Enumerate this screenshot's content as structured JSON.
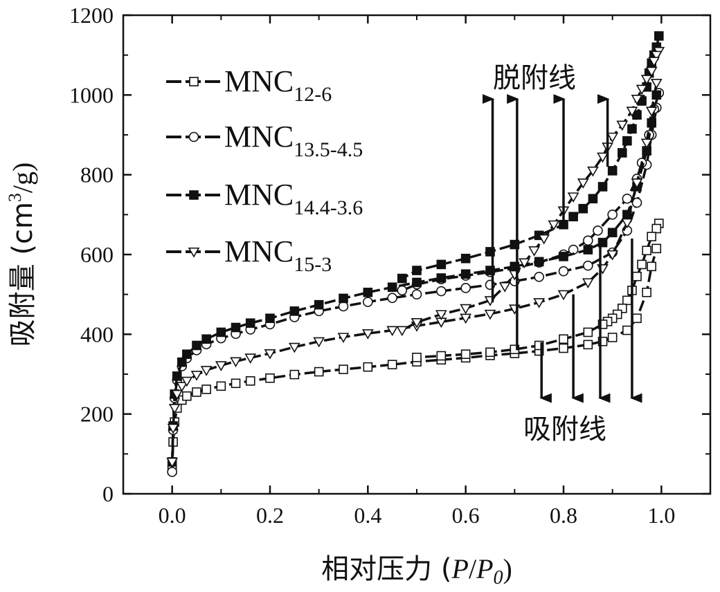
{
  "chart_data": {
    "type": "line",
    "xlabel": {
      "main": "相对压力 (",
      "p": "P",
      "slash": "/",
      "p0": "P",
      "p0sub": "0",
      "close": ")"
    },
    "ylabel": {
      "main": "吸附量 (cm",
      "sup": "3",
      "tail": "/g)"
    },
    "xlim": [
      -0.1,
      1.1
    ],
    "ylim": [
      0,
      1200
    ],
    "xticks": [
      0.0,
      0.2,
      0.4,
      0.6,
      0.8,
      1.0
    ],
    "xtick_labels": [
      "0.0",
      "0.2",
      "0.4",
      "0.6",
      "0.8",
      "1.0"
    ],
    "yticks": [
      0,
      200,
      400,
      600,
      800,
      1000,
      1200
    ],
    "ytick_labels": [
      "0",
      "200",
      "400",
      "600",
      "800",
      "1000",
      "1200"
    ],
    "grid": false,
    "legend_position": "top-left",
    "series": [
      {
        "name": "MNC",
        "subscript": "12-6",
        "marker": "open-square",
        "adsorption": {
          "x": [
            0.0,
            0.002,
            0.005,
            0.01,
            0.02,
            0.03,
            0.05,
            0.07,
            0.1,
            0.13,
            0.16,
            0.2,
            0.25,
            0.3,
            0.35,
            0.4,
            0.45,
            0.5,
            0.55,
            0.6,
            0.65,
            0.7,
            0.75,
            0.8,
            0.85,
            0.88,
            0.9,
            0.93,
            0.95,
            0.97,
            0.98,
            0.99
          ],
          "y": [
            60,
            130,
            180,
            215,
            235,
            245,
            255,
            262,
            270,
            277,
            283,
            290,
            299,
            306,
            312,
            318,
            324,
            331,
            336,
            341,
            347,
            352,
            358,
            365,
            374,
            382,
            392,
            410,
            440,
            505,
            570,
            615
          ]
        },
        "desorption": {
          "x": [
            0.995,
            0.99,
            0.98,
            0.97,
            0.96,
            0.95,
            0.94,
            0.93,
            0.92,
            0.91,
            0.9,
            0.89,
            0.88,
            0.85,
            0.8,
            0.75,
            0.7,
            0.65,
            0.6,
            0.55,
            0.5
          ],
          "y": [
            678,
            665,
            645,
            610,
            575,
            545,
            510,
            485,
            465,
            450,
            440,
            432,
            425,
            405,
            388,
            372,
            362,
            355,
            350,
            346,
            342
          ]
        }
      },
      {
        "name": "MNC",
        "subscript": "13.5-4.5",
        "marker": "open-circle",
        "adsorption": {
          "x": [
            0.0,
            0.002,
            0.005,
            0.01,
            0.02,
            0.03,
            0.05,
            0.07,
            0.1,
            0.13,
            0.16,
            0.2,
            0.25,
            0.3,
            0.35,
            0.4,
            0.45,
            0.5,
            0.55,
            0.6,
            0.65,
            0.7,
            0.75,
            0.8,
            0.85,
            0.9,
            0.93,
            0.95,
            0.97,
            0.98,
            0.99
          ],
          "y": [
            55,
            160,
            240,
            285,
            320,
            340,
            360,
            375,
            390,
            401,
            412,
            425,
            443,
            458,
            470,
            481,
            491,
            500,
            508,
            516,
            524,
            533,
            544,
            558,
            572,
            605,
            660,
            730,
            825,
            900,
            968
          ]
        },
        "desorption": {
          "x": [
            0.995,
            0.985,
            0.975,
            0.96,
            0.95,
            0.93,
            0.9,
            0.87,
            0.85,
            0.82,
            0.8,
            0.75,
            0.7,
            0.65,
            0.6,
            0.55,
            0.5,
            0.47
          ],
          "y": [
            1005,
            965,
            900,
            830,
            790,
            740,
            700,
            660,
            635,
            612,
            600,
            580,
            566,
            556,
            547,
            538,
            525,
            510
          ]
        }
      },
      {
        "name": "MNC",
        "subscript": "14.4-3.6",
        "marker": "filled-square",
        "adsorption": {
          "x": [
            0.0,
            0.002,
            0.005,
            0.01,
            0.02,
            0.03,
            0.05,
            0.07,
            0.1,
            0.13,
            0.16,
            0.2,
            0.25,
            0.3,
            0.35,
            0.4,
            0.45,
            0.5,
            0.55,
            0.6,
            0.65,
            0.7,
            0.75,
            0.8,
            0.85,
            0.88,
            0.9,
            0.93,
            0.95,
            0.97,
            0.98,
            0.99
          ],
          "y": [
            80,
            170,
            250,
            295,
            330,
            350,
            372,
            388,
            405,
            417,
            428,
            440,
            458,
            474,
            490,
            505,
            518,
            530,
            541,
            551,
            560,
            570,
            582,
            595,
            612,
            630,
            655,
            700,
            770,
            860,
            930,
            1000
          ]
        },
        "desorption": {
          "x": [
            0.995,
            0.99,
            0.985,
            0.98,
            0.975,
            0.97,
            0.96,
            0.95,
            0.94,
            0.93,
            0.92,
            0.9,
            0.88,
            0.86,
            0.84,
            0.82,
            0.8,
            0.75,
            0.7,
            0.65,
            0.6,
            0.55,
            0.5,
            0.47
          ],
          "y": [
            1148,
            1120,
            1100,
            1080,
            1055,
            1020,
            985,
            950,
            915,
            885,
            855,
            810,
            770,
            740,
            715,
            695,
            675,
            648,
            625,
            607,
            590,
            575,
            560,
            540
          ]
        }
      },
      {
        "name": "MNC",
        "subscript": "15-3",
        "marker": "open-triangle-down",
        "adsorption": {
          "x": [
            0.0,
            0.002,
            0.005,
            0.01,
            0.02,
            0.03,
            0.05,
            0.07,
            0.1,
            0.13,
            0.16,
            0.2,
            0.25,
            0.3,
            0.35,
            0.4,
            0.45,
            0.5,
            0.55,
            0.6,
            0.65,
            0.7,
            0.75,
            0.8,
            0.85,
            0.88,
            0.9,
            0.93,
            0.95,
            0.97,
            0.98,
            0.99
          ],
          "y": [
            80,
            165,
            215,
            250,
            270,
            283,
            298,
            310,
            322,
            332,
            341,
            352,
            368,
            382,
            393,
            402,
            410,
            421,
            431,
            441,
            451,
            464,
            480,
            500,
            530,
            565,
            600,
            680,
            780,
            880,
            960,
            1030
          ]
        },
        "desorption": {
          "x": [
            0.995,
            0.99,
            0.985,
            0.98,
            0.97,
            0.96,
            0.95,
            0.94,
            0.92,
            0.9,
            0.89,
            0.88,
            0.86,
            0.84,
            0.82,
            0.8,
            0.78,
            0.76,
            0.74,
            0.72,
            0.7,
            0.68,
            0.65,
            0.6,
            0.55,
            0.5,
            0.47
          ],
          "y": [
            1110,
            1100,
            1085,
            1060,
            1040,
            1015,
            990,
            960,
            925,
            895,
            870,
            845,
            810,
            780,
            745,
            710,
            675,
            640,
            610,
            580,
            550,
            520,
            485,
            465,
            450,
            430,
            410
          ]
        }
      }
    ],
    "annotations": {
      "desorption_label": "脱附线",
      "adsorption_label": "吸附线",
      "desorption_arrows": [
        {
          "x": 0.655,
          "y_from": 480,
          "y_to": 990
        },
        {
          "x": 0.705,
          "y_from": 360,
          "y_to": 990
        },
        {
          "x": 0.8,
          "y_from": 670,
          "y_to": 990
        },
        {
          "x": 0.89,
          "y_from": 820,
          "y_to": 990
        }
      ],
      "adsorption_arrows": [
        {
          "x": 0.755,
          "y_from": 380,
          "y_to": 240
        },
        {
          "x": 0.82,
          "y_from": 500,
          "y_to": 240
        },
        {
          "x": 0.875,
          "y_from": 620,
          "y_to": 240
        },
        {
          "x": 0.94,
          "y_from": 640,
          "y_to": 240
        }
      ]
    }
  }
}
